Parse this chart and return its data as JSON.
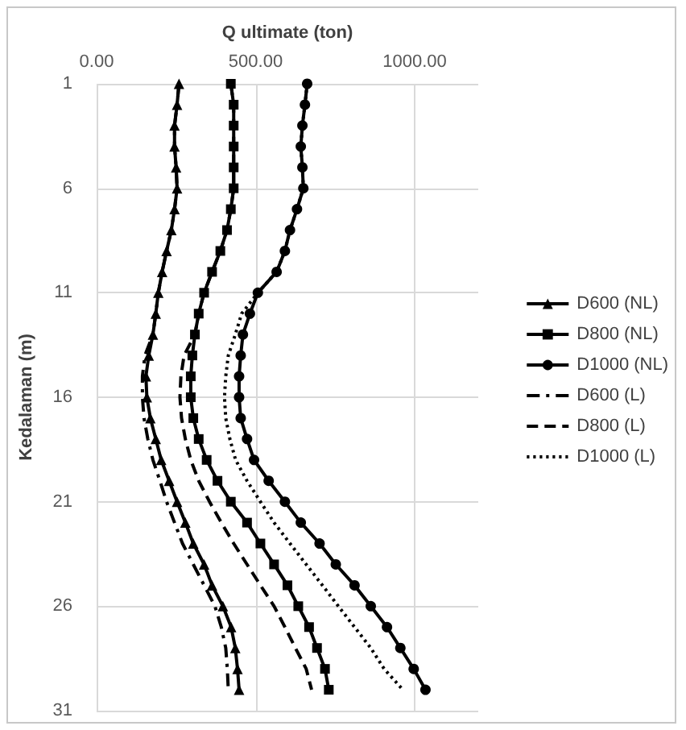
{
  "chart_data": {
    "type": "line",
    "xlabel": "Q ultimate (ton)",
    "ylabel": "Kedalaman (m)",
    "xlim": [
      0,
      1200
    ],
    "xticks": [
      {
        "value": 0,
        "label": "0.00"
      },
      {
        "value": 500,
        "label": "500.00"
      },
      {
        "value": 1000,
        "label": "1000.00"
      }
    ],
    "ylim": [
      31,
      1
    ],
    "yticks": [
      1,
      6,
      11,
      16,
      21,
      26,
      31
    ],
    "grid": true,
    "legend": "right",
    "series": [
      {
        "name": "D600 (NL)",
        "color": "#000000",
        "marker": "triangle",
        "line_style": "solid",
        "x": [
          259,
          253,
          245,
          245,
          250,
          253,
          245,
          235,
          220,
          206,
          194,
          186,
          177,
          164,
          155,
          158,
          169,
          186,
          203,
          228,
          253,
          279,
          304,
          338,
          363,
          397,
          423,
          436,
          443,
          448
        ],
        "values": [
          1,
          2,
          3,
          4,
          5,
          6,
          7,
          8,
          9,
          10,
          11,
          12,
          13,
          14,
          15,
          16,
          17,
          18,
          19,
          20,
          21,
          22,
          23,
          24,
          25,
          26,
          27,
          28,
          29,
          30
        ]
      },
      {
        "name": "D800 (NL)",
        "color": "#000000",
        "marker": "square",
        "line_style": "solid",
        "x": [
          422,
          431,
          431,
          431,
          431,
          431,
          422,
          410,
          389,
          363,
          338,
          321,
          309,
          301,
          296,
          296,
          304,
          321,
          346,
          380,
          422,
          473,
          515,
          558,
          600,
          634,
          668,
          693,
          718,
          730
        ],
        "values": [
          1,
          2,
          3,
          4,
          5,
          6,
          7,
          8,
          9,
          10,
          11,
          12,
          13,
          14,
          15,
          16,
          17,
          18,
          19,
          20,
          21,
          22,
          23,
          24,
          25,
          26,
          27,
          28,
          29,
          30
        ]
      },
      {
        "name": "D1000 (NL)",
        "color": "#000000",
        "marker": "circle",
        "line_style": "solid",
        "x": [
          662,
          655,
          647,
          642,
          647,
          650,
          630,
          608,
          592,
          566,
          507,
          482,
          460,
          453,
          448,
          448,
          453,
          473,
          495,
          541,
          592,
          642,
          701,
          752,
          811,
          862,
          913,
          955,
          997,
          1034
        ],
        "values": [
          1,
          2,
          3,
          4,
          5,
          6,
          7,
          8,
          9,
          10,
          11,
          12,
          13,
          14,
          15,
          16,
          17,
          18,
          19,
          20,
          21,
          22,
          23,
          24,
          25,
          26,
          27,
          28,
          29,
          30
        ]
      },
      {
        "name": "D600 (L)",
        "color": "#000000",
        "marker": "none",
        "line_style": "dashdot",
        "x": [
          259,
          253,
          245,
          245,
          250,
          253,
          245,
          235,
          220,
          206,
          194,
          186,
          177,
          152,
          144,
          144,
          149,
          161,
          177,
          199,
          220,
          245,
          270,
          304,
          338,
          372,
          392,
          406,
          411,
          414
        ],
        "values": [
          1,
          2,
          3,
          4,
          5,
          6,
          7,
          8,
          9,
          10,
          11,
          12,
          13,
          14,
          15,
          16,
          17,
          18,
          19,
          20,
          21,
          22,
          23,
          24,
          25,
          26,
          27,
          28,
          29,
          30
        ]
      },
      {
        "name": "D800 (L)",
        "color": "#000000",
        "marker": "none",
        "line_style": "dashed",
        "x": [
          422,
          431,
          431,
          431,
          431,
          431,
          422,
          410,
          389,
          363,
          338,
          321,
          309,
          275,
          265,
          262,
          267,
          279,
          296,
          321,
          355,
          392,
          431,
          473,
          515,
          558,
          592,
          625,
          659,
          676
        ],
        "values": [
          1,
          2,
          3,
          4,
          5,
          6,
          7,
          8,
          9,
          10,
          11,
          12,
          13,
          14,
          15,
          16,
          17,
          18,
          19,
          20,
          21,
          22,
          23,
          24,
          25,
          26,
          27,
          28,
          29,
          30
        ]
      },
      {
        "name": "D1000 (L)",
        "color": "#000000",
        "marker": "none",
        "line_style": "dotted",
        "x": [
          662,
          655,
          647,
          642,
          647,
          650,
          630,
          608,
          592,
          566,
          507,
          456,
          436,
          414,
          406,
          402,
          406,
          419,
          437,
          473,
          515,
          558,
          608,
          659,
          710,
          760,
          811,
          862,
          904,
          963
        ],
        "values": [
          1,
          2,
          3,
          4,
          5,
          6,
          7,
          8,
          9,
          10,
          11,
          12,
          13,
          14,
          15,
          16,
          17,
          18,
          19,
          20,
          21,
          22,
          23,
          24,
          25,
          26,
          27,
          28,
          29,
          30
        ]
      }
    ]
  }
}
